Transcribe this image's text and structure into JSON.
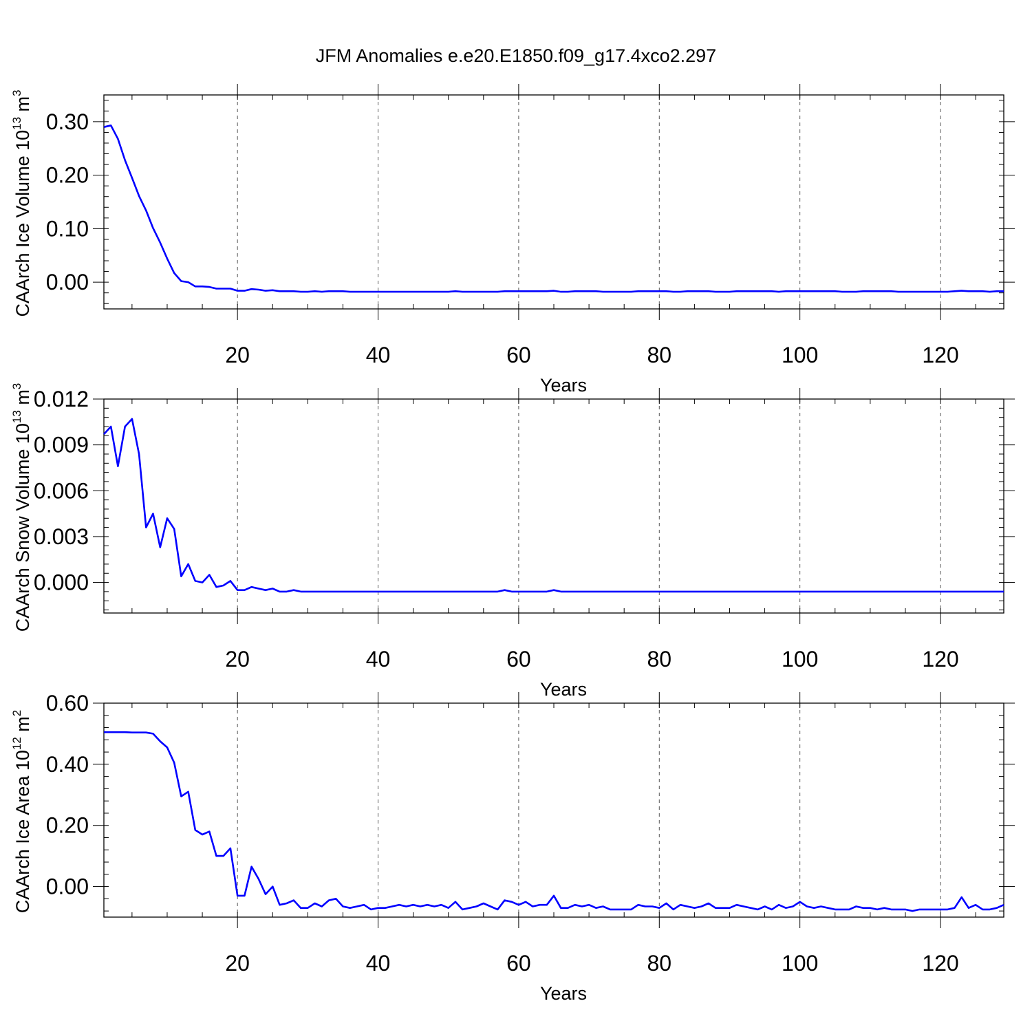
{
  "title": "JFM Anomalies e.e20.E1850.f09_g17.4xco2.297",
  "colors": {
    "series": "#0000ff",
    "axis": "#000000",
    "grid": "#555555"
  },
  "chart_data": [
    {
      "type": "line",
      "ylabel": {
        "text": "CAArch Ice Volume 10",
        "exp": "13",
        "unit": " m",
        "unit_exp": "3"
      },
      "xlabel": "Years",
      "xlim": [
        1,
        129
      ],
      "ylim": [
        -0.05,
        0.35
      ],
      "xticks": [
        20,
        40,
        60,
        80,
        100,
        120
      ],
      "xtick_labels": [
        "20",
        "40",
        "60",
        "80",
        "100",
        "120"
      ],
      "yticks": [
        0.0,
        0.1,
        0.2,
        0.3
      ],
      "ytick_labels": [
        "0.00",
        "0.10",
        "0.20",
        "0.30"
      ],
      "grid": "vertical dashed at x ticks",
      "series": [
        {
          "x": [
            1,
            2,
            3,
            4,
            5,
            6,
            7,
            8,
            9,
            10,
            11,
            12,
            13,
            14,
            15,
            16,
            17,
            18,
            19,
            20,
            21,
            22,
            23,
            24,
            25,
            26,
            27,
            28,
            29,
            30,
            31,
            32,
            33,
            34,
            35,
            36,
            37,
            38,
            39,
            40,
            41,
            42,
            43,
            44,
            45,
            46,
            47,
            48,
            49,
            50,
            51,
            52,
            53,
            54,
            55,
            56,
            57,
            58,
            59,
            60,
            61,
            62,
            63,
            64,
            65,
            66,
            67,
            68,
            69,
            70,
            71,
            72,
            73,
            74,
            75,
            76,
            77,
            78,
            79,
            80,
            81,
            82,
            83,
            84,
            85,
            86,
            87,
            88,
            89,
            90,
            91,
            92,
            93,
            94,
            95,
            96,
            97,
            98,
            99,
            100,
            101,
            102,
            103,
            104,
            105,
            106,
            107,
            108,
            109,
            110,
            111,
            112,
            113,
            114,
            115,
            116,
            117,
            118,
            119,
            120,
            121,
            122,
            123,
            124,
            125,
            126,
            127,
            128,
            129
          ],
          "y": [
            0.29,
            0.293,
            0.268,
            0.228,
            0.195,
            0.161,
            0.134,
            0.101,
            0.074,
            0.044,
            0.017,
            0.002,
            0.0,
            -0.008,
            -0.008,
            -0.009,
            -0.012,
            -0.012,
            -0.012,
            -0.016,
            -0.016,
            -0.013,
            -0.014,
            -0.016,
            -0.015,
            -0.017,
            -0.017,
            -0.017,
            -0.018,
            -0.018,
            -0.017,
            -0.018,
            -0.017,
            -0.017,
            -0.017,
            -0.018,
            -0.018,
            -0.018,
            -0.018,
            -0.018,
            -0.018,
            -0.018,
            -0.018,
            -0.018,
            -0.018,
            -0.018,
            -0.018,
            -0.018,
            -0.018,
            -0.018,
            -0.017,
            -0.018,
            -0.018,
            -0.018,
            -0.018,
            -0.018,
            -0.018,
            -0.017,
            -0.017,
            -0.017,
            -0.017,
            -0.017,
            -0.017,
            -0.017,
            -0.016,
            -0.018,
            -0.018,
            -0.017,
            -0.017,
            -0.017,
            -0.017,
            -0.018,
            -0.018,
            -0.018,
            -0.018,
            -0.018,
            -0.017,
            -0.017,
            -0.017,
            -0.017,
            -0.017,
            -0.018,
            -0.018,
            -0.017,
            -0.017,
            -0.017,
            -0.017,
            -0.018,
            -0.018,
            -0.018,
            -0.017,
            -0.017,
            -0.017,
            -0.017,
            -0.017,
            -0.017,
            -0.018,
            -0.017,
            -0.017,
            -0.017,
            -0.017,
            -0.017,
            -0.017,
            -0.017,
            -0.017,
            -0.018,
            -0.018,
            -0.018,
            -0.017,
            -0.017,
            -0.017,
            -0.017,
            -0.017,
            -0.018,
            -0.018,
            -0.018,
            -0.018,
            -0.018,
            -0.018,
            -0.018,
            -0.018,
            -0.017,
            -0.016,
            -0.017,
            -0.017,
            -0.017,
            -0.018,
            -0.017,
            -0.017
          ]
        }
      ]
    },
    {
      "type": "line",
      "ylabel": {
        "text": "CAArch Snow Volume 10",
        "exp": "13",
        "unit": " m",
        "unit_exp": "3"
      },
      "xlabel": "Years",
      "xlim": [
        1,
        129
      ],
      "ylim": [
        -0.002,
        0.012
      ],
      "xticks": [
        20,
        40,
        60,
        80,
        100,
        120
      ],
      "xtick_labels": [
        "20",
        "40",
        "60",
        "80",
        "100",
        "120"
      ],
      "yticks": [
        0.0,
        0.003,
        0.006,
        0.009,
        0.012
      ],
      "ytick_labels": [
        "0.000",
        "0.003",
        "0.006",
        "0.009",
        "0.012"
      ],
      "grid": "vertical dashed at x ticks",
      "series": [
        {
          "x": [
            1,
            2,
            3,
            4,
            5,
            6,
            7,
            8,
            9,
            10,
            11,
            12,
            13,
            14,
            15,
            16,
            17,
            18,
            19,
            20,
            21,
            22,
            23,
            24,
            25,
            26,
            27,
            28,
            29,
            30,
            31,
            32,
            33,
            34,
            35,
            36,
            37,
            38,
            39,
            40,
            41,
            42,
            43,
            44,
            45,
            46,
            47,
            48,
            49,
            50,
            51,
            52,
            53,
            54,
            55,
            56,
            57,
            58,
            59,
            60,
            61,
            62,
            63,
            64,
            65,
            66,
            67,
            68,
            69,
            70,
            71,
            72,
            73,
            74,
            75,
            76,
            77,
            78,
            79,
            80,
            81,
            82,
            83,
            84,
            85,
            86,
            87,
            88,
            89,
            90,
            91,
            92,
            93,
            94,
            95,
            96,
            97,
            98,
            99,
            100,
            101,
            102,
            103,
            104,
            105,
            106,
            107,
            108,
            109,
            110,
            111,
            112,
            113,
            114,
            115,
            116,
            117,
            118,
            119,
            120,
            121,
            122,
            123,
            124,
            125,
            126,
            127,
            128,
            129
          ],
          "y": [
            0.0097,
            0.0102,
            0.0076,
            0.0102,
            0.0107,
            0.0084,
            0.0036,
            0.0045,
            0.0023,
            0.0042,
            0.0035,
            0.0004,
            0.0012,
            0.0001,
            0.0,
            0.0005,
            -0.0003,
            -0.0002,
            0.0001,
            -0.0005,
            -0.0005,
            -0.0003,
            -0.0004,
            -0.0005,
            -0.0004,
            -0.0006,
            -0.0006,
            -0.0005,
            -0.0006,
            -0.0006,
            -0.0006,
            -0.0006,
            -0.0006,
            -0.0006,
            -0.0006,
            -0.0006,
            -0.0006,
            -0.0006,
            -0.0006,
            -0.0006,
            -0.0006,
            -0.0006,
            -0.0006,
            -0.0006,
            -0.0006,
            -0.0006,
            -0.0006,
            -0.0006,
            -0.0006,
            -0.0006,
            -0.0006,
            -0.0006,
            -0.0006,
            -0.0006,
            -0.0006,
            -0.0006,
            -0.0006,
            -0.0005,
            -0.0006,
            -0.0006,
            -0.0006,
            -0.0006,
            -0.0006,
            -0.0006,
            -0.0005,
            -0.0006,
            -0.0006,
            -0.0006,
            -0.0006,
            -0.0006,
            -0.0006,
            -0.0006,
            -0.0006,
            -0.0006,
            -0.0006,
            -0.0006,
            -0.0006,
            -0.0006,
            -0.0006,
            -0.0006,
            -0.0006,
            -0.0006,
            -0.0006,
            -0.0006,
            -0.0006,
            -0.0006,
            -0.0006,
            -0.0006,
            -0.0006,
            -0.0006,
            -0.0006,
            -0.0006,
            -0.0006,
            -0.0006,
            -0.0006,
            -0.0006,
            -0.0006,
            -0.0006,
            -0.0006,
            -0.0006,
            -0.0006,
            -0.0006,
            -0.0006,
            -0.0006,
            -0.0006,
            -0.0006,
            -0.0006,
            -0.0006,
            -0.0006,
            -0.0006,
            -0.0006,
            -0.0006,
            -0.0006,
            -0.0006,
            -0.0006,
            -0.0006,
            -0.0006,
            -0.0006,
            -0.0006,
            -0.0006,
            -0.0006,
            -0.0006,
            -0.0006,
            -0.0006,
            -0.0006,
            -0.0006,
            -0.0006,
            -0.0006,
            -0.0006
          ]
        }
      ]
    },
    {
      "type": "line",
      "ylabel": {
        "text": "CAArch Ice Area 10",
        "exp": "12",
        "unit": " m",
        "unit_exp": "2"
      },
      "xlabel": "Years",
      "xlim": [
        1,
        129
      ],
      "ylim": [
        -0.1,
        0.6
      ],
      "xticks": [
        20,
        40,
        60,
        80,
        100,
        120
      ],
      "xtick_labels": [
        "20",
        "40",
        "60",
        "80",
        "100",
        "120"
      ],
      "yticks": [
        0.0,
        0.2,
        0.4,
        0.6
      ],
      "ytick_labels": [
        "0.00",
        "0.20",
        "0.40",
        "0.60"
      ],
      "grid": "vertical dashed at x ticks",
      "series": [
        {
          "x": [
            1,
            2,
            3,
            4,
            5,
            6,
            7,
            8,
            9,
            10,
            11,
            12,
            13,
            14,
            15,
            16,
            17,
            18,
            19,
            20,
            21,
            22,
            23,
            24,
            25,
            26,
            27,
            28,
            29,
            30,
            31,
            32,
            33,
            34,
            35,
            36,
            37,
            38,
            39,
            40,
            41,
            42,
            43,
            44,
            45,
            46,
            47,
            48,
            49,
            50,
            51,
            52,
            53,
            54,
            55,
            56,
            57,
            58,
            59,
            60,
            61,
            62,
            63,
            64,
            65,
            66,
            67,
            68,
            69,
            70,
            71,
            72,
            73,
            74,
            75,
            76,
            77,
            78,
            79,
            80,
            81,
            82,
            83,
            84,
            85,
            86,
            87,
            88,
            89,
            90,
            91,
            92,
            93,
            94,
            95,
            96,
            97,
            98,
            99,
            100,
            101,
            102,
            103,
            104,
            105,
            106,
            107,
            108,
            109,
            110,
            111,
            112,
            113,
            114,
            115,
            116,
            117,
            118,
            119,
            120,
            121,
            122,
            123,
            124,
            125,
            126,
            127,
            128,
            129
          ],
          "y": [
            0.505,
            0.505,
            0.505,
            0.505,
            0.504,
            0.504,
            0.504,
            0.5,
            0.475,
            0.455,
            0.405,
            0.295,
            0.31,
            0.185,
            0.17,
            0.18,
            0.1,
            0.1,
            0.125,
            -0.03,
            -0.03,
            0.065,
            0.025,
            -0.025,
            0.0,
            -0.06,
            -0.055,
            -0.045,
            -0.07,
            -0.07,
            -0.055,
            -0.065,
            -0.045,
            -0.04,
            -0.065,
            -0.07,
            -0.065,
            -0.06,
            -0.075,
            -0.07,
            -0.07,
            -0.065,
            -0.06,
            -0.065,
            -0.06,
            -0.065,
            -0.06,
            -0.065,
            -0.06,
            -0.07,
            -0.05,
            -0.075,
            -0.07,
            -0.065,
            -0.055,
            -0.065,
            -0.075,
            -0.045,
            -0.05,
            -0.06,
            -0.05,
            -0.065,
            -0.06,
            -0.06,
            -0.03,
            -0.07,
            -0.07,
            -0.06,
            -0.065,
            -0.06,
            -0.07,
            -0.065,
            -0.075,
            -0.075,
            -0.075,
            -0.075,
            -0.06,
            -0.065,
            -0.065,
            -0.07,
            -0.055,
            -0.075,
            -0.06,
            -0.065,
            -0.07,
            -0.065,
            -0.055,
            -0.07,
            -0.07,
            -0.07,
            -0.06,
            -0.065,
            -0.07,
            -0.075,
            -0.065,
            -0.075,
            -0.06,
            -0.07,
            -0.065,
            -0.05,
            -0.065,
            -0.07,
            -0.065,
            -0.07,
            -0.075,
            -0.075,
            -0.075,
            -0.065,
            -0.07,
            -0.07,
            -0.075,
            -0.07,
            -0.075,
            -0.075,
            -0.075,
            -0.08,
            -0.075,
            -0.075,
            -0.075,
            -0.075,
            -0.075,
            -0.07,
            -0.035,
            -0.07,
            -0.06,
            -0.075,
            -0.075,
            -0.07,
            -0.06
          ]
        }
      ]
    }
  ]
}
